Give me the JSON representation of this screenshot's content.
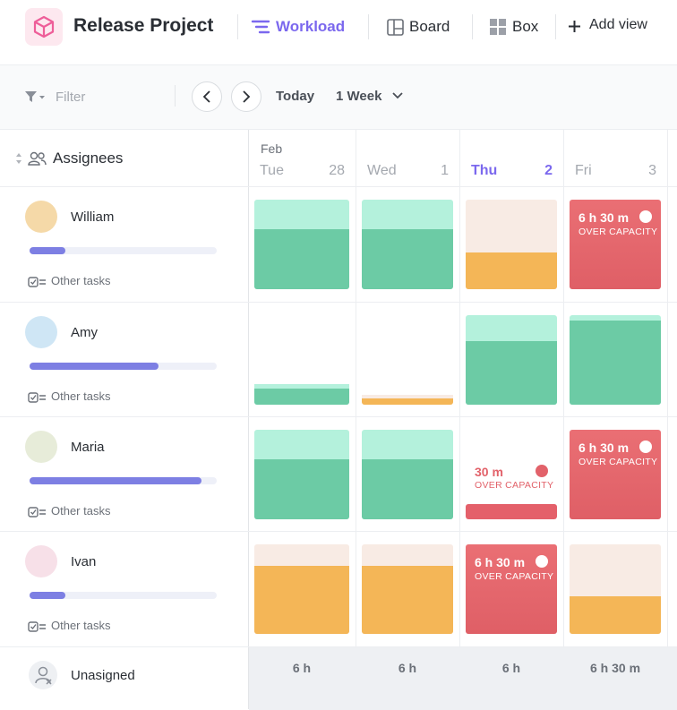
{
  "header": {
    "title": "Release Project",
    "views": [
      "Workload",
      "Board",
      "Box"
    ],
    "add_view": "Add view"
  },
  "toolbar": {
    "filter": "Filter",
    "today": "Today",
    "range": "1 Week"
  },
  "grid": {
    "assignees_label": "Assignees",
    "month": "Feb",
    "days": [
      {
        "name": "Tue",
        "date": "28"
      },
      {
        "name": "Wed",
        "date": "1"
      },
      {
        "name": "Thu",
        "date": "2"
      },
      {
        "name": "Fri",
        "date": "3"
      }
    ]
  },
  "rows": [
    {
      "name": "William",
      "progress": 19,
      "other_tasks": "Other tasks",
      "cells": [
        {
          "kind": "green",
          "capacity": 1,
          "load": 0.67
        },
        {
          "kind": "green",
          "capacity": 1,
          "load": 0.67
        },
        {
          "kind": "orange",
          "capacity": 1,
          "load": 0.41
        },
        {
          "kind": "red",
          "label": "6 h 30 m",
          "note": "OVER CAPACITY"
        }
      ]
    },
    {
      "name": "Amy",
      "progress": 69,
      "other_tasks": "Other tasks",
      "cells": [
        {
          "kind": "green",
          "capacity": 0.23,
          "load": 0.18
        },
        {
          "kind": "orange",
          "capacity": 0.11,
          "load": 0.07
        },
        {
          "kind": "green",
          "capacity": 1,
          "load": 0.71
        },
        {
          "kind": "green",
          "capacity": 1,
          "load": 0.94
        }
      ]
    },
    {
      "name": "Maria",
      "progress": 92,
      "other_tasks": "Other tasks",
      "cells": [
        {
          "kind": "green",
          "capacity": 1,
          "load": 0.67
        },
        {
          "kind": "green",
          "capacity": 1,
          "load": 0.67
        },
        {
          "kind": "over",
          "load": 0.17,
          "label": "30 m",
          "note": "OVER CAPACITY"
        },
        {
          "kind": "red",
          "label": "6 h 30 m",
          "note": "OVER CAPACITY"
        }
      ]
    },
    {
      "name": "Ivan",
      "progress": 19,
      "other_tasks": "Other tasks",
      "cells": [
        {
          "kind": "orange",
          "capacity": 1,
          "load": 0.76
        },
        {
          "kind": "orange",
          "capacity": 1,
          "load": 0.76
        },
        {
          "kind": "red",
          "label": "6 h 30 m",
          "note": "OVER CAPACITY"
        },
        {
          "kind": "orange",
          "capacity": 1,
          "load": 0.42
        }
      ]
    }
  ],
  "unassigned": {
    "name": "Unasigned",
    "totals": [
      "6 h",
      "6 h",
      "6 h",
      "6 h 30 m"
    ]
  }
}
